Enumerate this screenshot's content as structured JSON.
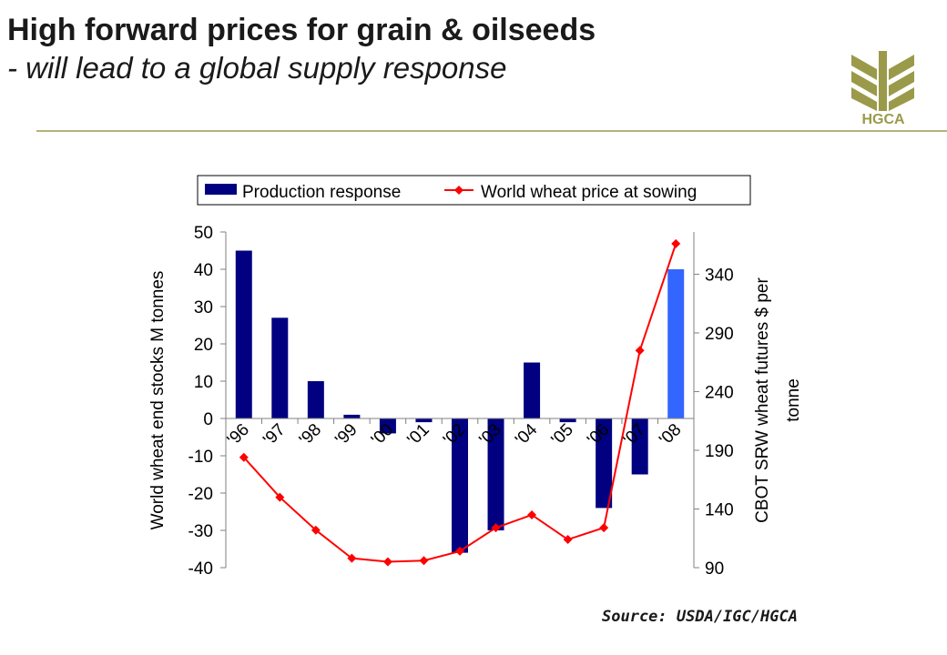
{
  "header": {
    "title": "High forward prices for grain & oilseeds",
    "subtitle": "- will lead to a global supply response"
  },
  "logo": {
    "text": "HGCA",
    "icon": "wheat-ears-icon",
    "color": "#9a9a4a"
  },
  "source": "Source: USDA/IGC/HGCA",
  "chart_data": {
    "type": "bar+line",
    "categories": [
      "'96",
      "'97",
      "'98",
      "'99",
      "'00",
      "'01",
      "'02",
      "'03",
      "'04",
      "'05",
      "'06",
      "'07",
      "'08"
    ],
    "series": [
      {
        "name": "Production response",
        "kind": "bar",
        "axis": "left",
        "color": "#000080",
        "highlight_color": "#3366ff",
        "values": [
          45,
          27,
          10,
          1,
          -4,
          -1,
          -36,
          -30,
          15,
          -1,
          -24,
          -15,
          40
        ]
      },
      {
        "name": "World wheat price at sowing",
        "kind": "line",
        "axis": "right",
        "color": "#ff0000",
        "values": [
          184,
          150,
          122,
          98,
          95,
          96,
          104,
          124,
          135,
          114,
          124,
          275,
          366
        ]
      }
    ],
    "ylabel_left": "World wheat end stocks M tonnes",
    "ylabel_right": "CBOT SRW wheat futures $ per tonne",
    "ylim_left": [
      -40,
      50
    ],
    "yticks_left": [
      50,
      40,
      30,
      20,
      10,
      0,
      -10,
      -20,
      -30,
      -40
    ],
    "ylim_right": [
      90,
      376
    ],
    "yticks_right": [
      340,
      290,
      240,
      190,
      140,
      90
    ],
    "legend_position": "top",
    "grid": false
  }
}
